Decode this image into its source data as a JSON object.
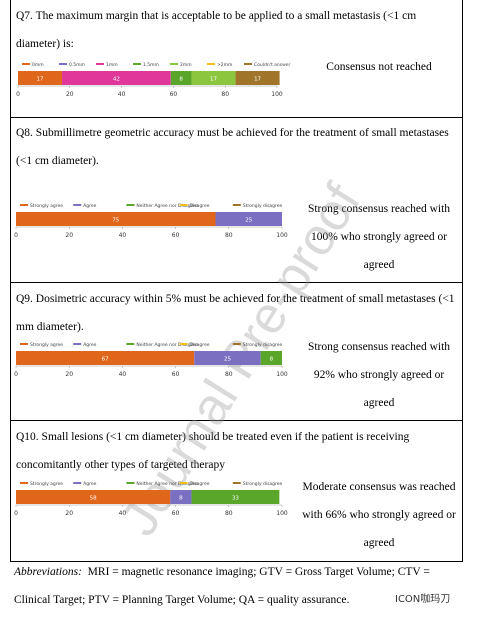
{
  "rows": [
    {
      "question": "Q7. The maximum margin that is acceptable to be applied to a small metastasis (<1 cm diameter) is:",
      "chart": {
        "type": "bar",
        "xlim": [
          0,
          100
        ],
        "xticks": [
          0,
          20,
          40,
          60,
          80,
          100
        ],
        "series": [
          {
            "name": "0mm",
            "color": "#e0661b",
            "values": [
              17
            ]
          },
          {
            "name": "0.5mm",
            "color": "#7b6fc1",
            "values": [
              0
            ]
          },
          {
            "name": "1mm",
            "color": "#e0389a",
            "values": [
              42
            ]
          },
          {
            "name": "1.5mm",
            "color": "#5aa62b",
            "values": [
              8
            ]
          },
          {
            "name": "2mm",
            "color": "#8cc63f",
            "values": [
              17
            ]
          },
          {
            "name": ">2mm",
            "color": "#f0c020",
            "values": [
              0
            ]
          },
          {
            "name": "Couldn't answer",
            "color": "#a0752a",
            "values": [
              17
            ]
          }
        ]
      },
      "result": "Consensus not reached"
    },
    {
      "question": "Q8. Submillimetre geometric accuracy must be achieved for the treatment of small metastases (<1 cm diameter).",
      "chart": {
        "type": "bar",
        "xlim": [
          0,
          100
        ],
        "xticks": [
          0,
          20,
          40,
          60,
          80,
          100
        ],
        "series": [
          {
            "name": "Strongly agree",
            "color": "#e0661b",
            "values": [
              75
            ]
          },
          {
            "name": "Agree",
            "color": "#7b6fc1",
            "values": [
              25
            ]
          },
          {
            "name": "Neither Agree nor Disagree",
            "color": "#5aa62b",
            "values": [
              0
            ]
          },
          {
            "name": "Disagree",
            "color": "#f0c020",
            "values": [
              0
            ]
          },
          {
            "name": "Strongly disagree",
            "color": "#a0752a",
            "values": [
              0
            ]
          }
        ]
      },
      "result": "Strong consensus reached with 100% who strongly agreed or agreed"
    },
    {
      "question": "Q9. Dosimetric accuracy within 5% must be achieved for the treatment of small metastases (<1 mm diameter).",
      "chart": {
        "type": "bar",
        "xlim": [
          0,
          100
        ],
        "xticks": [
          0,
          20,
          40,
          60,
          80,
          100
        ],
        "series": [
          {
            "name": "Strongly agree",
            "color": "#e0661b",
            "values": [
              67
            ]
          },
          {
            "name": "Agree",
            "color": "#7b6fc1",
            "values": [
              25
            ]
          },
          {
            "name": "Neither Agree nor Disagree",
            "color": "#5aa62b",
            "values": [
              8
            ]
          },
          {
            "name": "Disagree",
            "color": "#f0c020",
            "values": [
              0
            ]
          },
          {
            "name": "Strongly disagree",
            "color": "#a0752a",
            "values": [
              0
            ]
          }
        ]
      },
      "result": "Strong consensus reached with 92% who strongly agreed or agreed"
    },
    {
      "question": "Q10. Small lesions (<1 cm diameter) should be treated even if the patient is receiving concomitantly other types of targeted therapy",
      "chart": {
        "type": "bar",
        "xlim": [
          0,
          100
        ],
        "xticks": [
          0,
          20,
          40,
          60,
          80,
          100
        ],
        "series": [
          {
            "name": "Strongly agree",
            "color": "#e0661b",
            "values": [
              58
            ]
          },
          {
            "name": "Agree",
            "color": "#7b6fc1",
            "values": [
              8
            ]
          },
          {
            "name": "Neither Agree nor Disagree",
            "color": "#5aa62b",
            "values": [
              33
            ]
          },
          {
            "name": "Disagree",
            "color": "#f0c020",
            "values": [
              0
            ]
          },
          {
            "name": "Strongly disagree",
            "color": "#a0752a",
            "values": [
              0
            ]
          }
        ]
      },
      "result": "Moderate consensus was reached with 66% who strongly agreed or agreed"
    }
  ],
  "abbreviations": {
    "label": "Abbreviations:",
    "text": "MRI = magnetic resonance imaging; GTV = Gross Target Volume; CTV = Clinical Target; PTV = Planning Target Volume; QA = quality assurance."
  },
  "watermark": "Journal Pre-proof",
  "logo": "ICON咖玛刀"
}
